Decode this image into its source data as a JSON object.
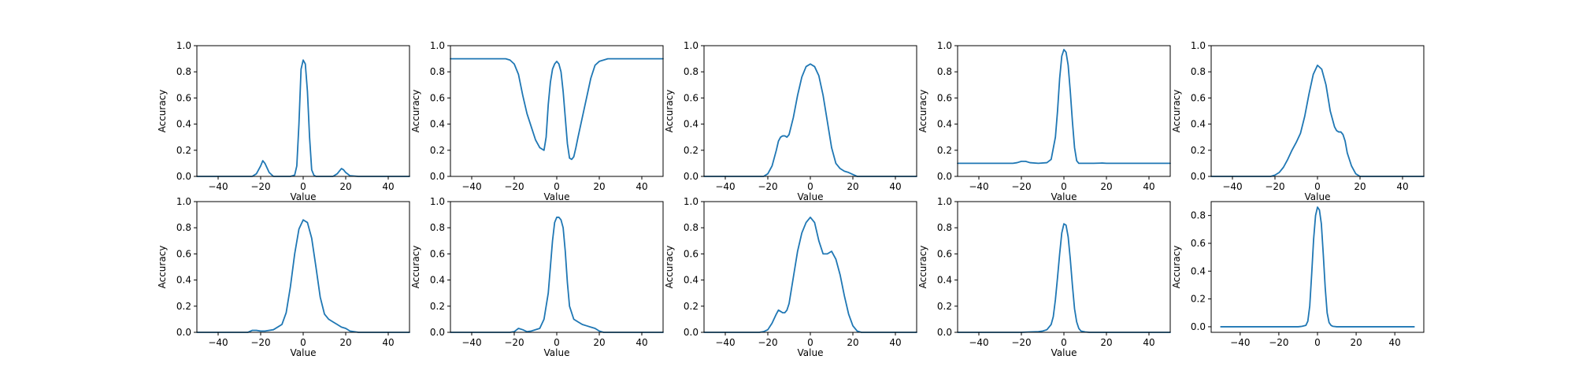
{
  "figure": {
    "line_color": "#1f77b4"
  },
  "chart_data": [
    {
      "type": "line",
      "title": "",
      "xlabel": "Value",
      "ylabel": "Accuracy",
      "xlim": [
        -50,
        50
      ],
      "ylim": [
        0,
        1
      ],
      "xticks": [
        -40,
        -20,
        0,
        20,
        40
      ],
      "yticks": [
        0.0,
        0.2,
        0.4,
        0.6,
        0.8,
        1.0
      ],
      "grid": false,
      "series": [
        {
          "x": [
            -50,
            -30,
            -24,
            -22,
            -20,
            -19,
            -18,
            -16,
            -14,
            -10,
            -6,
            -4,
            -3,
            -2,
            -1,
            0,
            1,
            2,
            3,
            4,
            5,
            6,
            10,
            14,
            16,
            17,
            18,
            19,
            20,
            22,
            26,
            30,
            40,
            50
          ],
          "y": [
            0,
            0,
            0,
            0.02,
            0.08,
            0.12,
            0.1,
            0.03,
            0,
            0,
            0,
            0.01,
            0.08,
            0.4,
            0.82,
            0.89,
            0.86,
            0.65,
            0.3,
            0.05,
            0.01,
            0,
            0,
            0,
            0.02,
            0.04,
            0.06,
            0.05,
            0.03,
            0.005,
            0,
            0,
            0,
            0
          ]
        }
      ]
    },
    {
      "type": "line",
      "title": "",
      "xlabel": "Value",
      "ylabel": "Accuracy",
      "xlim": [
        -50,
        50
      ],
      "ylim": [
        0,
        1
      ],
      "xticks": [
        -40,
        -20,
        0,
        20,
        40
      ],
      "yticks": [
        0.0,
        0.2,
        0.4,
        0.6,
        0.8,
        1.0
      ],
      "grid": false,
      "series": [
        {
          "x": [
            -50,
            -40,
            -30,
            -24,
            -22,
            -20,
            -18,
            -16,
            -14,
            -12,
            -10,
            -8,
            -6,
            -5,
            -4,
            -3,
            -2,
            -1,
            0,
            1,
            2,
            3,
            4,
            5,
            6,
            7,
            8,
            9,
            10,
            12,
            14,
            16,
            18,
            20,
            22,
            24,
            26,
            30,
            40,
            50
          ],
          "y": [
            0.9,
            0.9,
            0.9,
            0.9,
            0.89,
            0.86,
            0.78,
            0.62,
            0.48,
            0.38,
            0.28,
            0.22,
            0.2,
            0.3,
            0.55,
            0.72,
            0.82,
            0.86,
            0.88,
            0.86,
            0.8,
            0.65,
            0.45,
            0.25,
            0.14,
            0.13,
            0.15,
            0.22,
            0.3,
            0.45,
            0.6,
            0.75,
            0.85,
            0.88,
            0.89,
            0.9,
            0.9,
            0.9,
            0.9,
            0.9
          ]
        }
      ]
    },
    {
      "type": "line",
      "title": "",
      "xlabel": "Value",
      "ylabel": "Accuracy",
      "xlim": [
        -50,
        50
      ],
      "ylim": [
        0,
        1
      ],
      "xticks": [
        -40,
        -20,
        0,
        20,
        40
      ],
      "yticks": [
        0.0,
        0.2,
        0.4,
        0.6,
        0.8,
        1.0
      ],
      "grid": false,
      "series": [
        {
          "x": [
            -50,
            -30,
            -22,
            -20,
            -18,
            -16,
            -15,
            -14,
            -13,
            -12,
            -11,
            -10,
            -8,
            -6,
            -4,
            -2,
            0,
            2,
            4,
            6,
            8,
            10,
            12,
            14,
            16,
            18,
            20,
            22,
            30,
            50
          ],
          "y": [
            0,
            0,
            0,
            0.02,
            0.08,
            0.2,
            0.27,
            0.3,
            0.31,
            0.31,
            0.3,
            0.32,
            0.45,
            0.62,
            0.76,
            0.84,
            0.86,
            0.84,
            0.77,
            0.62,
            0.42,
            0.22,
            0.1,
            0.06,
            0.04,
            0.03,
            0.015,
            0,
            0,
            0
          ]
        }
      ]
    },
    {
      "type": "line",
      "title": "",
      "xlabel": "Value",
      "ylabel": "Accuracy",
      "xlim": [
        -50,
        50
      ],
      "ylim": [
        0,
        1
      ],
      "xticks": [
        -40,
        -20,
        0,
        20,
        40
      ],
      "yticks": [
        0.0,
        0.2,
        0.4,
        0.6,
        0.8,
        1.0
      ],
      "grid": false,
      "series": [
        {
          "x": [
            -50,
            -30,
            -24,
            -22,
            -20,
            -18,
            -16,
            -12,
            -8,
            -6,
            -4,
            -3,
            -2,
            -1,
            0,
            1,
            2,
            3,
            4,
            5,
            6,
            7,
            8,
            10,
            14,
            18,
            20,
            24,
            30,
            40,
            50
          ],
          "y": [
            0.1,
            0.1,
            0.1,
            0.105,
            0.115,
            0.115,
            0.105,
            0.1,
            0.105,
            0.13,
            0.3,
            0.5,
            0.75,
            0.92,
            0.97,
            0.95,
            0.85,
            0.65,
            0.42,
            0.22,
            0.12,
            0.1,
            0.1,
            0.1,
            0.1,
            0.102,
            0.1,
            0.1,
            0.1,
            0.1,
            0.1
          ]
        }
      ]
    },
    {
      "type": "line",
      "title": "",
      "xlabel": "Value",
      "ylabel": "Accuracy",
      "xlim": [
        -50,
        50
      ],
      "ylim": [
        0,
        1
      ],
      "xticks": [
        -40,
        -20,
        0,
        20,
        40
      ],
      "yticks": [
        0.0,
        0.2,
        0.4,
        0.6,
        0.8,
        1.0
      ],
      "grid": false,
      "series": [
        {
          "x": [
            -50,
            -30,
            -22,
            -20,
            -18,
            -16,
            -14,
            -12,
            -10,
            -8,
            -6,
            -4,
            -2,
            0,
            2,
            4,
            6,
            8,
            9,
            10,
            11,
            12,
            13,
            14,
            16,
            18,
            20,
            30,
            50
          ],
          "y": [
            0,
            0,
            0,
            0.01,
            0.03,
            0.07,
            0.13,
            0.2,
            0.26,
            0.33,
            0.46,
            0.63,
            0.78,
            0.85,
            0.82,
            0.7,
            0.5,
            0.38,
            0.35,
            0.34,
            0.34,
            0.32,
            0.27,
            0.18,
            0.08,
            0.02,
            0,
            0,
            0
          ]
        }
      ]
    },
    {
      "type": "line",
      "title": "",
      "xlabel": "Value",
      "ylabel": "Accuracy",
      "xlim": [
        -50,
        50
      ],
      "ylim": [
        0,
        1
      ],
      "xticks": [
        -40,
        -20,
        0,
        20,
        40
      ],
      "yticks": [
        0.0,
        0.2,
        0.4,
        0.6,
        0.8,
        1.0
      ],
      "grid": false,
      "series": [
        {
          "x": [
            -50,
            -30,
            -26,
            -24,
            -22,
            -20,
            -18,
            -14,
            -10,
            -8,
            -6,
            -4,
            -2,
            0,
            2,
            4,
            6,
            8,
            10,
            12,
            14,
            16,
            18,
            20,
            22,
            26,
            30,
            50
          ],
          "y": [
            0,
            0,
            0,
            0.015,
            0.015,
            0.01,
            0.01,
            0.02,
            0.06,
            0.15,
            0.35,
            0.6,
            0.79,
            0.86,
            0.84,
            0.72,
            0.5,
            0.27,
            0.14,
            0.1,
            0.08,
            0.06,
            0.04,
            0.03,
            0.01,
            0,
            0,
            0
          ]
        }
      ]
    },
    {
      "type": "line",
      "title": "",
      "xlabel": "Value",
      "ylabel": "Accuracy",
      "xlim": [
        -50,
        50
      ],
      "ylim": [
        0,
        1
      ],
      "xticks": [
        -40,
        -20,
        0,
        20,
        40
      ],
      "yticks": [
        0.0,
        0.2,
        0.4,
        0.6,
        0.8,
        1.0
      ],
      "grid": false,
      "series": [
        {
          "x": [
            -50,
            -30,
            -22,
            -20,
            -18,
            -16,
            -14,
            -12,
            -8,
            -6,
            -4,
            -3,
            -2,
            -1,
            0,
            1,
            2,
            3,
            4,
            5,
            6,
            8,
            10,
            12,
            14,
            16,
            18,
            20,
            22,
            30,
            50
          ],
          "y": [
            0,
            0,
            0,
            0.005,
            0.03,
            0.02,
            0.005,
            0.01,
            0.03,
            0.1,
            0.3,
            0.5,
            0.7,
            0.84,
            0.88,
            0.88,
            0.86,
            0.8,
            0.62,
            0.38,
            0.2,
            0.1,
            0.08,
            0.06,
            0.05,
            0.04,
            0.03,
            0.01,
            0,
            0,
            0
          ]
        }
      ]
    },
    {
      "type": "line",
      "title": "",
      "xlabel": "Value",
      "ylabel": "Accuracy",
      "xlim": [
        -50,
        50
      ],
      "ylim": [
        0,
        1
      ],
      "xticks": [
        -40,
        -20,
        0,
        20,
        40
      ],
      "yticks": [
        0.0,
        0.2,
        0.4,
        0.6,
        0.8,
        1.0
      ],
      "grid": false,
      "series": [
        {
          "x": [
            -50,
            -30,
            -24,
            -22,
            -20,
            -18,
            -16,
            -15,
            -14,
            -13,
            -12,
            -11,
            -10,
            -8,
            -6,
            -4,
            -2,
            0,
            2,
            4,
            6,
            8,
            10,
            12,
            14,
            16,
            18,
            20,
            22,
            24,
            30,
            50
          ],
          "y": [
            0,
            0,
            0,
            0.005,
            0.02,
            0.07,
            0.14,
            0.17,
            0.16,
            0.15,
            0.15,
            0.17,
            0.22,
            0.42,
            0.62,
            0.76,
            0.84,
            0.88,
            0.84,
            0.7,
            0.6,
            0.6,
            0.62,
            0.56,
            0.44,
            0.28,
            0.14,
            0.05,
            0.01,
            0,
            0,
            0
          ]
        }
      ]
    },
    {
      "type": "line",
      "title": "",
      "xlabel": "Value",
      "ylabel": "Accuracy",
      "xlim": [
        -50,
        50
      ],
      "ylim": [
        0,
        1
      ],
      "xticks": [
        -40,
        -20,
        0,
        20,
        40
      ],
      "yticks": [
        0.0,
        0.2,
        0.4,
        0.6,
        0.8,
        1.0
      ],
      "grid": false,
      "series": [
        {
          "x": [
            -50,
            -30,
            -20,
            -16,
            -12,
            -10,
            -8,
            -6,
            -5,
            -4,
            -3,
            -2,
            -1,
            0,
            1,
            2,
            3,
            4,
            5,
            6,
            7,
            8,
            10,
            12,
            14,
            20,
            30,
            50
          ],
          "y": [
            0,
            0,
            0,
            0.003,
            0.005,
            0.01,
            0.02,
            0.06,
            0.12,
            0.25,
            0.42,
            0.6,
            0.76,
            0.83,
            0.82,
            0.73,
            0.56,
            0.36,
            0.18,
            0.08,
            0.03,
            0.01,
            0.003,
            0,
            0,
            0,
            0,
            0
          ]
        }
      ]
    },
    {
      "type": "line",
      "title": "",
      "xlabel": "",
      "ylabel": "Accuracy",
      "xlim": [
        -55,
        55
      ],
      "ylim": [
        -0.04,
        0.9
      ],
      "xticks": [
        -40,
        -20,
        0,
        20,
        40
      ],
      "yticks": [
        0.0,
        0.2,
        0.4,
        0.6,
        0.8
      ],
      "grid": false,
      "series": [
        {
          "x": [
            -50,
            -30,
            -10,
            -8,
            -6,
            -5,
            -4,
            -3,
            -2,
            -1,
            0,
            1,
            2,
            3,
            4,
            5,
            6,
            7,
            8,
            10,
            30,
            50
          ],
          "y": [
            0,
            0,
            0,
            0.003,
            0.01,
            0.04,
            0.15,
            0.38,
            0.63,
            0.8,
            0.86,
            0.84,
            0.74,
            0.52,
            0.28,
            0.1,
            0.03,
            0.01,
            0.003,
            0,
            0,
            0
          ]
        }
      ]
    }
  ]
}
